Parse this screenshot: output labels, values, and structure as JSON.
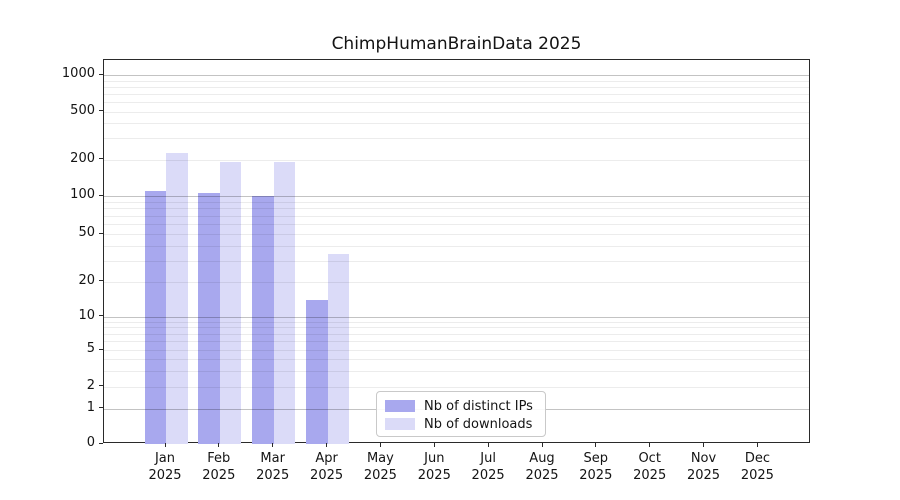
{
  "chart_data": {
    "type": "bar",
    "title": "ChimpHumanBrainData 2025",
    "categories": [
      "Jan 2025",
      "Feb 2025",
      "Mar 2025",
      "Apr 2025",
      "May 2025",
      "Jun 2025",
      "Jul 2025",
      "Aug 2025",
      "Sep 2025",
      "Oct 2025",
      "Nov 2025",
      "Dec 2025"
    ],
    "series": [
      {
        "name": "Nb of distinct IPs",
        "color": "#a8a8ee",
        "values": [
          110,
          105,
          100,
          14,
          0,
          0,
          0,
          0,
          0,
          0,
          0,
          0
        ]
      },
      {
        "name": "Nb of downloads",
        "color": "#dbdbf8",
        "values": [
          225,
          190,
          190,
          34,
          0,
          0,
          0,
          0,
          0,
          0,
          0,
          0
        ]
      }
    ],
    "y_ticks": [
      0,
      1,
      2,
      5,
      10,
      20,
      50,
      100,
      200,
      500,
      1000
    ],
    "y_scale": "symlog",
    "ylim": [
      0,
      1300
    ],
    "xlabel": "",
    "ylabel": "",
    "grid": true,
    "legend_position": "lower center"
  }
}
